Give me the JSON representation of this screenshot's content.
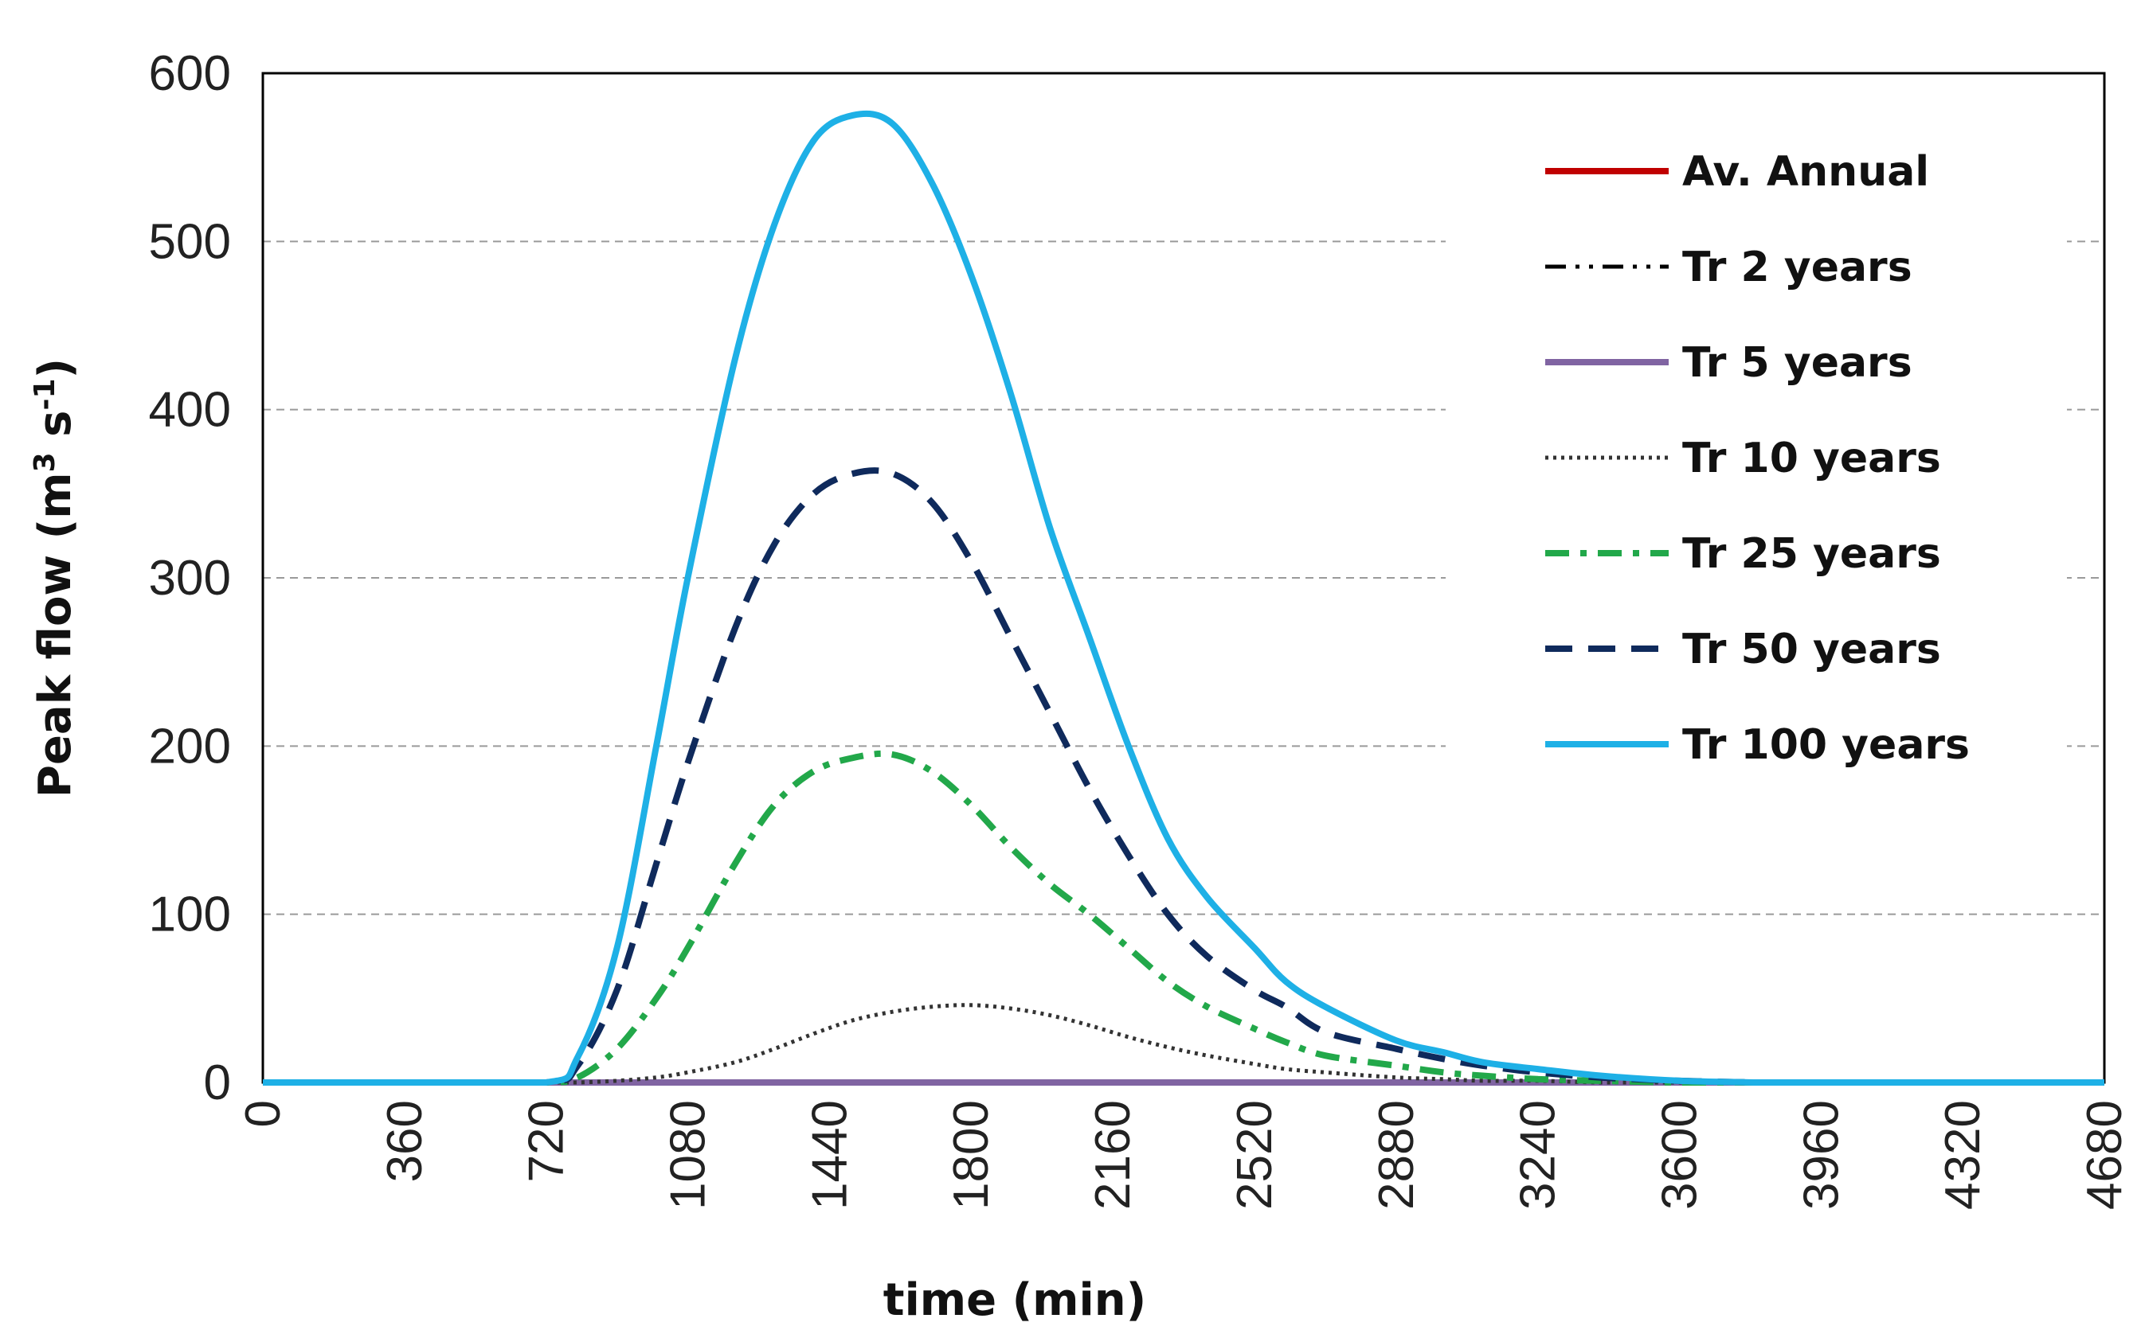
{
  "chart_data": {
    "type": "line",
    "title": "",
    "xlabel": "time (min)",
    "ylabel_main": "Peak flow (m",
    "ylabel_sup1": "3",
    "ylabel_mid": " s",
    "ylabel_sup2": "-1",
    "ylabel_end": ")",
    "xlim": [
      0,
      4680
    ],
    "ylim": [
      0,
      600
    ],
    "xticks": [
      0,
      360,
      720,
      1080,
      1440,
      1800,
      2160,
      2520,
      2880,
      3240,
      3600,
      3960,
      4320,
      4680
    ],
    "yticks": [
      0,
      100,
      200,
      300,
      400,
      500,
      600
    ],
    "grid": "horizontal dashed",
    "legend_position": "top-right",
    "x": [
      0,
      360,
      720,
      800,
      900,
      1000,
      1080,
      1200,
      1300,
      1400,
      1500,
      1600,
      1700,
      1800,
      1900,
      2000,
      2100,
      2200,
      2300,
      2400,
      2520,
      2600,
      2700,
      2880,
      3000,
      3100,
      3240,
      3400,
      3600,
      3800,
      3960,
      4100,
      4320,
      4680
    ],
    "series": [
      {
        "name": "Av. Annual",
        "color": "#c00000",
        "style": "solid",
        "values": [
          0,
          0,
          0,
          0,
          0,
          0,
          0,
          0,
          0,
          0,
          0,
          0,
          0,
          0,
          0,
          0,
          0,
          0,
          0,
          0,
          0,
          0,
          0,
          0,
          0,
          0,
          0,
          0,
          0,
          0,
          0,
          0,
          0,
          0
        ]
      },
      {
        "name": "Tr 2 years",
        "color": "#000000",
        "style": "dash-dot-dot",
        "values": [
          0,
          0,
          0,
          0,
          0,
          0,
          0,
          0,
          0,
          0,
          0,
          0,
          0,
          0,
          0,
          0,
          0,
          0,
          0,
          0,
          0,
          0,
          0,
          0,
          0,
          0,
          0,
          0,
          0,
          0,
          0,
          0,
          0,
          0
        ]
      },
      {
        "name": "Tr 5 years",
        "color": "#8064a2",
        "style": "solid",
        "values": [
          0,
          0,
          0,
          0,
          0,
          0,
          0,
          0,
          0,
          0,
          0,
          0,
          0,
          0,
          0,
          0,
          0,
          0,
          0,
          0,
          0,
          0,
          0,
          0,
          0,
          0,
          0,
          0,
          0,
          0,
          0,
          0,
          0,
          0
        ]
      },
      {
        "name": "Tr 10 years",
        "color": "#333333",
        "style": "dotted",
        "values": [
          0,
          0,
          0,
          0,
          1,
          3,
          6,
          12,
          20,
          29,
          37,
          42,
          45,
          46,
          44,
          40,
          34,
          27,
          21,
          16,
          11,
          8,
          6,
          3,
          2,
          1,
          1,
          0,
          0,
          0,
          0,
          0,
          0,
          0
        ]
      },
      {
        "name": "Tr 25 years",
        "color": "#22a84a",
        "style": "dash-dot",
        "values": [
          0,
          0,
          0,
          3,
          20,
          50,
          80,
          130,
          165,
          185,
          193,
          195,
          185,
          165,
          140,
          118,
          100,
          80,
          60,
          45,
          32,
          24,
          16,
          10,
          6,
          4,
          2,
          1,
          0,
          0,
          0,
          0,
          0,
          0
        ]
      },
      {
        "name": "Tr 50 years",
        "color": "#0f2a5c",
        "style": "dashed",
        "values": [
          0,
          0,
          0,
          10,
          55,
          130,
          190,
          270,
          320,
          350,
          362,
          362,
          345,
          310,
          265,
          220,
          175,
          135,
          100,
          75,
          55,
          45,
          30,
          20,
          14,
          10,
          6,
          3,
          1,
          0,
          0,
          0,
          0,
          0
        ]
      },
      {
        "name": "Tr 100 years",
        "color": "#1eb0e6",
        "style": "solid",
        "values": [
          0,
          0,
          0,
          15,
          80,
          200,
          300,
          430,
          510,
          560,
          575,
          570,
          535,
          480,
          410,
          330,
          265,
          200,
          145,
          110,
          80,
          60,
          45,
          25,
          18,
          12,
          8,
          4,
          1,
          0,
          0,
          0,
          0,
          0
        ]
      }
    ]
  }
}
